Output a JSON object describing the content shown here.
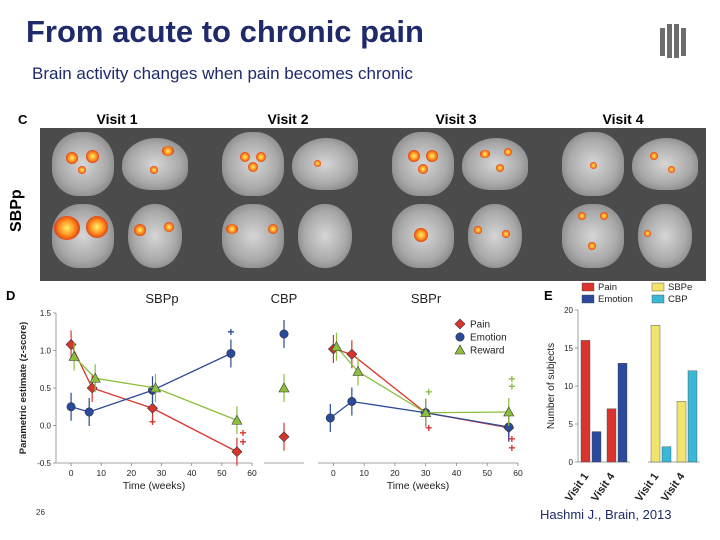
{
  "slide": {
    "title": "From acute to chronic pain",
    "subtitle": "Brain activity changes when pain becomes chronic",
    "slide_number": "26",
    "citation": "Hashmi J., Brain, 2013"
  },
  "panel_c": {
    "letter": "C",
    "row_label": "SBPp",
    "visits": [
      "Visit 1",
      "Visit 2",
      "Visit 3",
      "Visit 4"
    ]
  },
  "panel_d_letter": "D",
  "panel_e_letter": "E",
  "colors": {
    "pain": "#d9352e",
    "emotion": "#2b4a9b",
    "reward": "#8bbf3c",
    "sbpe": "#f0e56a",
    "cbp": "#3ab8d6",
    "title": "#1f2a6b",
    "brain_bg": "#4b4b4b"
  },
  "icons": {
    "logo": "institution-logo-icon",
    "pain_marker": "diamond",
    "emotion_marker": "circle",
    "reward_marker": "triangle"
  },
  "chart_data": [
    {
      "type": "line",
      "title": "SBPp",
      "xlabel": "Time (weeks)",
      "ylabel": "Parametric estimate (z-score)",
      "xlim": [
        -5,
        60
      ],
      "ylim": [
        -0.5,
        1.5
      ],
      "x_ticks": [
        0,
        10,
        20,
        30,
        40,
        50,
        60
      ],
      "y_ticks": [
        "-0.5",
        "0.0",
        "0.5",
        "1.0",
        "1.5"
      ],
      "series": [
        {
          "name": "Pain",
          "x": [
            0,
            7,
            27,
            55
          ],
          "y": [
            1.08,
            0.5,
            0.23,
            -0.35
          ]
        },
        {
          "name": "Emotion",
          "x": [
            0,
            6,
            27,
            53
          ],
          "y": [
            0.25,
            0.18,
            0.47,
            0.96
          ]
        },
        {
          "name": "Reward",
          "x": [
            1,
            8,
            28,
            55
          ],
          "y": [
            0.92,
            0.63,
            0.5,
            0.07
          ]
        }
      ],
      "significance": [
        {
          "symbol": "+",
          "x": 53,
          "y": 1.25
        },
        {
          "symbol": "+",
          "x": 27,
          "y": 0.05
        },
        {
          "symbol": "+",
          "x": 57,
          "y": -0.1
        },
        {
          "symbol": "+",
          "x": 57,
          "y": -0.22
        }
      ]
    },
    {
      "type": "scatter",
      "title": "CBP",
      "ylim": [
        -0.5,
        1.5
      ],
      "series": [
        {
          "name": "Emotion",
          "y": [
            1.22
          ]
        },
        {
          "name": "Reward",
          "y": [
            0.5
          ]
        },
        {
          "name": "Pain",
          "y": [
            -0.15
          ]
        }
      ]
    },
    {
      "type": "line",
      "title": "SBPr",
      "xlabel": "Time (weeks)",
      "xlim": [
        -5,
        60
      ],
      "ylim": [
        -0.5,
        1.5
      ],
      "x_ticks": [
        0,
        10,
        20,
        30,
        40,
        50,
        60
      ],
      "legend": [
        "Pain",
        "Emotion",
        "Reward"
      ],
      "legend_position": "top-right",
      "series": [
        {
          "name": "Pain",
          "x": [
            0,
            6,
            30,
            57
          ],
          "y": [
            1.02,
            0.95,
            0.17,
            -0.03
          ]
        },
        {
          "name": "Emotion",
          "x": [
            -1,
            6,
            30,
            57
          ],
          "y": [
            0.1,
            0.32,
            0.17,
            -0.02
          ]
        },
        {
          "name": "Reward",
          "x": [
            1,
            8,
            30,
            57
          ],
          "y": [
            1.05,
            0.72,
            0.17,
            0.18
          ]
        }
      ],
      "significance": [
        {
          "symbol": "+",
          "x": 31,
          "y": 0.45
        },
        {
          "symbol": "+",
          "x": 31,
          "y": -0.03
        },
        {
          "symbol": "+",
          "x": 58,
          "y": 0.62
        },
        {
          "symbol": "+",
          "x": 58,
          "y": 0.52
        },
        {
          "symbol": "+",
          "x": 58,
          "y": -0.18
        },
        {
          "symbol": "+",
          "x": 58,
          "y": -0.3
        }
      ]
    },
    {
      "type": "bar",
      "ylabel": "Number of subjects",
      "ylim": [
        0,
        20
      ],
      "y_ticks": [
        "0",
        "5",
        "10",
        "15",
        "20"
      ],
      "categories": [
        "Visit 1",
        "Visit 4"
      ],
      "series": [
        {
          "name": "Pain",
          "values": [
            16,
            7
          ]
        },
        {
          "name": "Emotion",
          "values": [
            4,
            13
          ]
        }
      ]
    },
    {
      "type": "bar",
      "ylim": [
        0,
        20
      ],
      "categories": [
        "Visit 1",
        "Visit 4"
      ],
      "series": [
        {
          "name": "SBPe",
          "values": [
            18,
            8
          ]
        },
        {
          "name": "CBP",
          "values": [
            2,
            12
          ]
        }
      ]
    }
  ]
}
